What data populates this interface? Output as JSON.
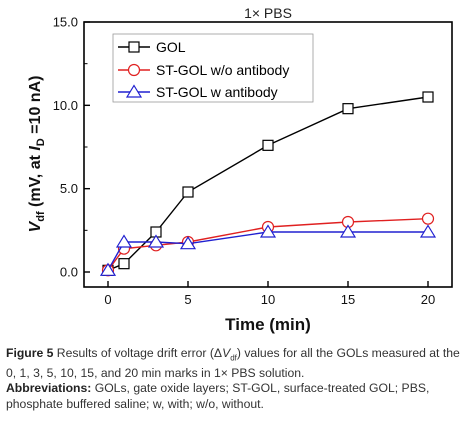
{
  "chart_data": {
    "type": "line",
    "title": "1× PBS",
    "xlabel": "Time (min)",
    "ylabel": {
      "v": "V",
      "v_sub": "df",
      "mid": " (mV, at ",
      "i": "I",
      "i_sub": "D",
      "end": " =10 nA)"
    },
    "x": [
      0,
      1,
      3,
      5,
      10,
      15,
      20
    ],
    "xlim": [
      -1.5,
      21.5
    ],
    "ylim": [
      -0.9,
      15.0
    ],
    "xticks": [
      "0",
      "5",
      "10",
      "15",
      "20"
    ],
    "xtick_values": [
      0,
      5,
      10,
      15,
      20
    ],
    "yticks": [
      "0.0",
      "5.0",
      "10.0",
      "15.0"
    ],
    "ytick_values": [
      0,
      5,
      10,
      15
    ],
    "legend_position": "top-left",
    "grid": false,
    "series": [
      {
        "name": "GOL",
        "color": "#000000",
        "marker": "square",
        "values": [
          0.1,
          0.5,
          2.4,
          4.8,
          7.6,
          9.8,
          10.5
        ]
      },
      {
        "name": "ST-GOL w/o antibody",
        "color": "#e02020",
        "marker": "circle",
        "values": [
          0.1,
          1.4,
          1.6,
          1.8,
          2.7,
          3.0,
          3.2
        ]
      },
      {
        "name": "ST-GOL w antibody",
        "color": "#2020d0",
        "marker": "triangle",
        "values": [
          0.1,
          1.8,
          1.8,
          1.7,
          2.4,
          2.4,
          2.4
        ]
      }
    ]
  },
  "caption": {
    "figure_label": "Figure 5",
    "text_a": " Results of voltage drift error (Δ",
    "v": "V",
    "v_sub": "df",
    "text_b": ") values for all the GOLs measured at the 0, 1, 3, 5, 10, 15, and 20 min marks in 1× PBS solution.",
    "abbrev_label": "Abbreviations:",
    "abbrev_text": " GOLs, gate oxide layers; ST-GOL, surface-treated GOL; PBS, phosphate buffered saline; w, with; w/o, without."
  }
}
